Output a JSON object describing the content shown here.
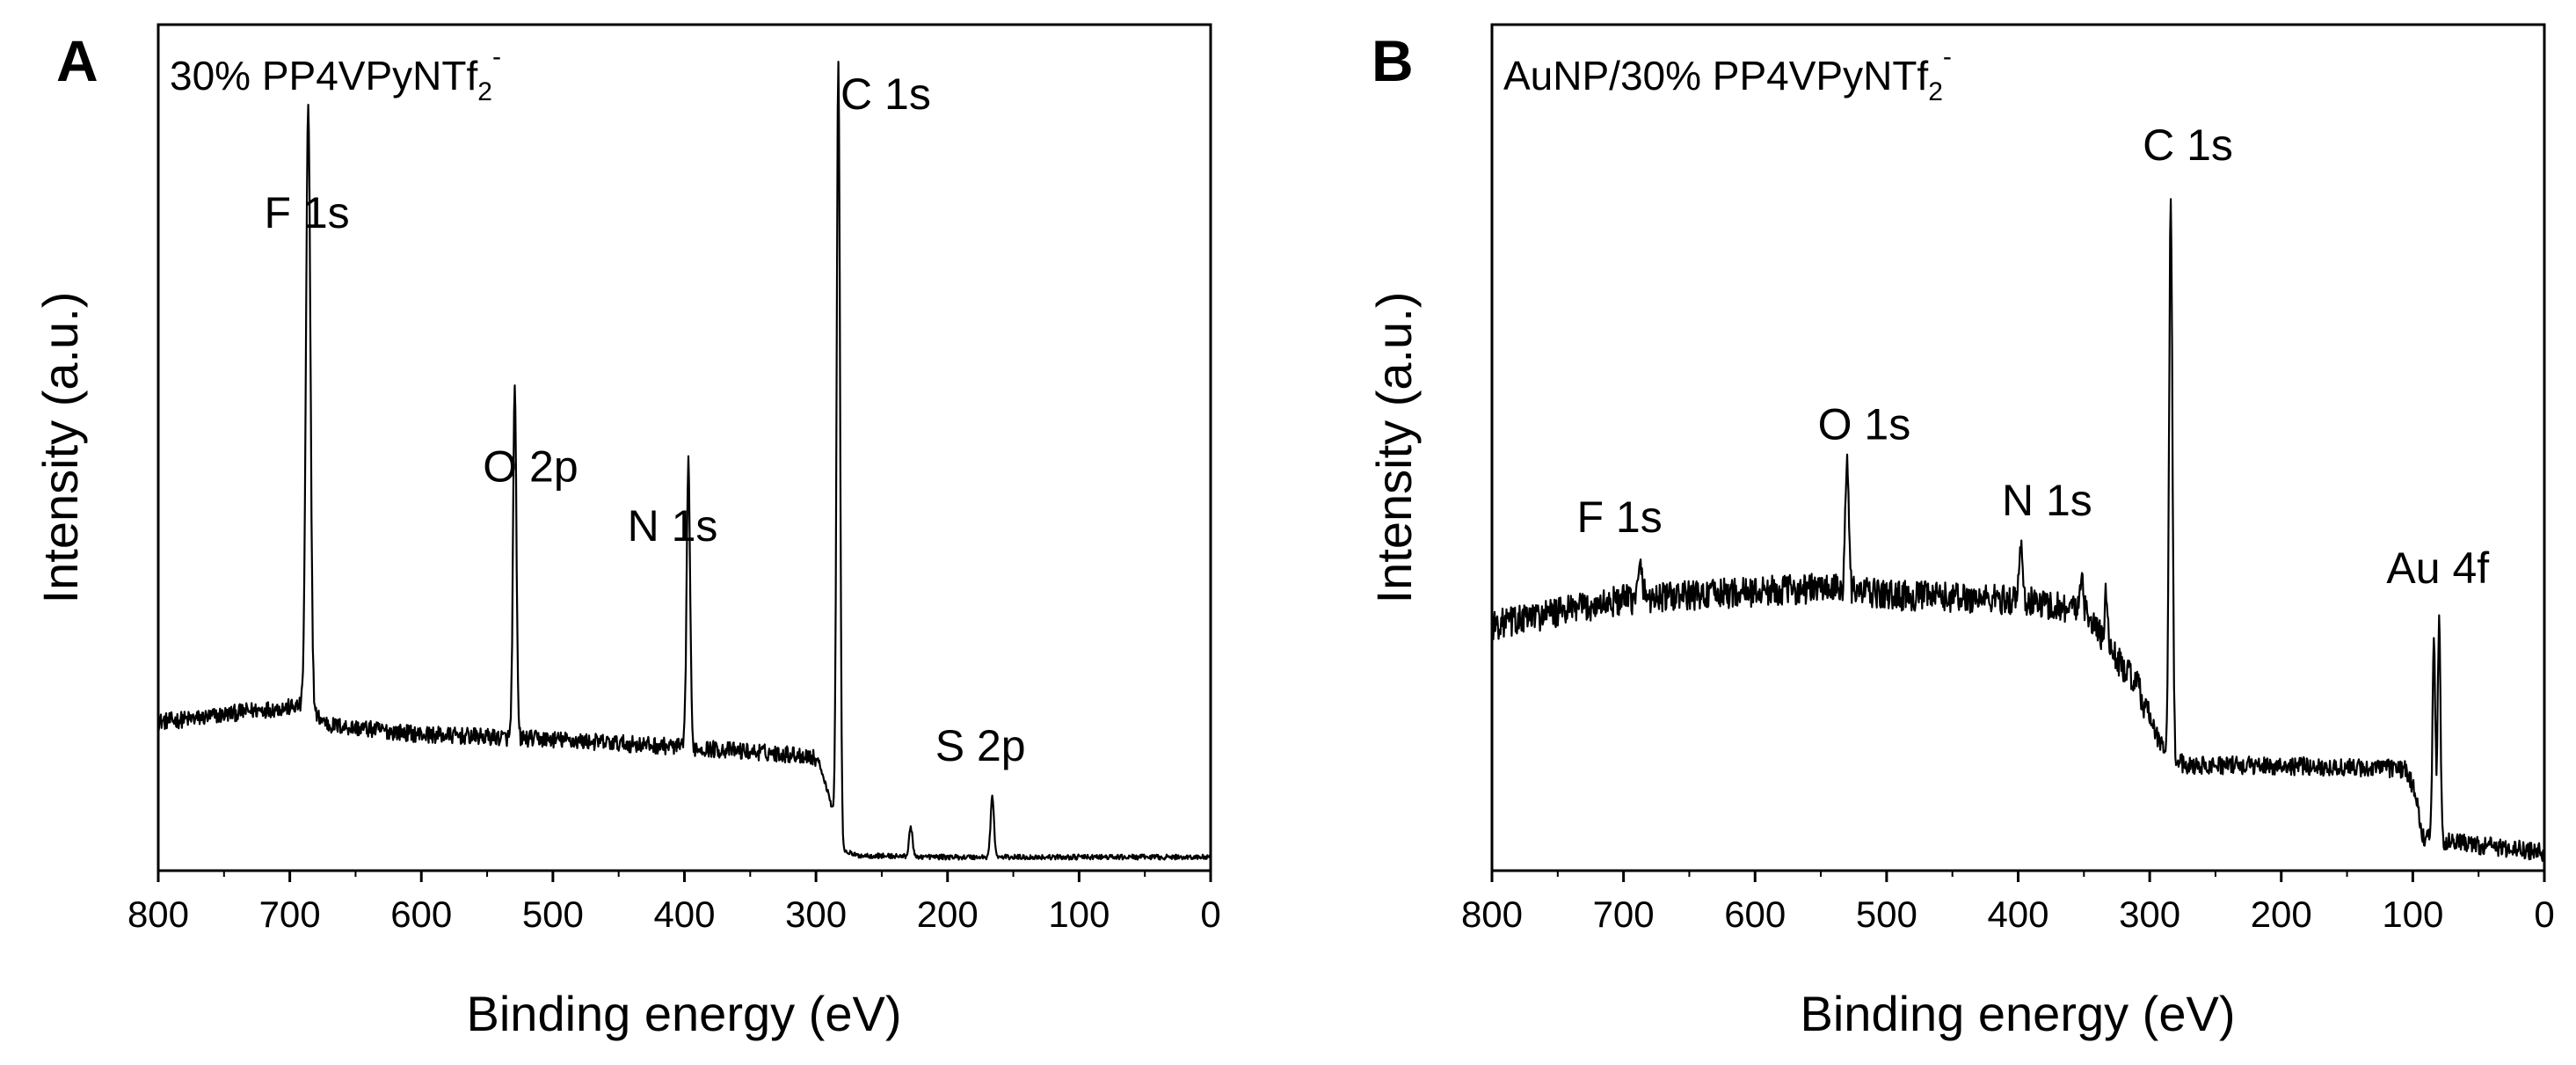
{
  "chart_data": [
    {
      "panel": "A",
      "type": "line",
      "title": "30% PP4VPyNTf2-",
      "title_parts": {
        "main": "30% PP4VPyNTf",
        "sub": "2",
        "sup": "-"
      },
      "xlabel": "Binding energy (eV)",
      "ylabel": "Intensity (a.u.)",
      "xlim": [
        800,
        0
      ],
      "ylim": [
        0,
        100
      ],
      "x_ticks": [
        800,
        700,
        600,
        500,
        400,
        300,
        200,
        100,
        0
      ],
      "y_ticks_labeled": false,
      "baseline": [
        [
          800,
          17.6
        ],
        [
          770,
          18.0
        ],
        [
          730,
          18.9
        ],
        [
          700,
          19.3
        ],
        [
          690,
          19.5
        ],
        [
          670,
          17.2
        ],
        [
          600,
          16.1
        ],
        [
          500,
          15.5
        ],
        [
          400,
          14.6
        ],
        [
          305,
          13.6
        ],
        [
          298,
          13.0
        ],
        [
          290,
          8.8
        ],
        [
          280,
          2.5
        ],
        [
          270,
          1.8
        ],
        [
          200,
          1.6
        ],
        [
          100,
          1.6
        ],
        [
          0,
          1.6
        ]
      ],
      "peaks": [
        {
          "label": "F 1s",
          "x": 686,
          "height": 71.0,
          "width": 4
        },
        {
          "label": "O 2p",
          "x": 529,
          "height": 41.0,
          "width": 3
        },
        {
          "label": "N 1s",
          "x": 397,
          "height": 34.0,
          "width": 3
        },
        {
          "label": "C 1s",
          "x": 283,
          "height": 91.5,
          "width": 3
        },
        {
          "label": "",
          "x": 228,
          "height": 3.5,
          "width": 3
        },
        {
          "label": "S 2p",
          "x": 166,
          "height": 7.2,
          "width": 3
        }
      ],
      "noise_amplitude": 1.0,
      "annotations": [
        {
          "text": "F 1s",
          "x": 687,
          "y": 76
        },
        {
          "text": "O 2p",
          "x": 517,
          "y": 46
        },
        {
          "text": "N 1s",
          "x": 409,
          "y": 39
        },
        {
          "text": "C 1s",
          "x": 247,
          "y": 90
        },
        {
          "text": "S 2p",
          "x": 175,
          "y": 13
        }
      ]
    },
    {
      "panel": "B",
      "type": "line",
      "title": "AuNP/30% PP4VPyNTf2-",
      "title_parts": {
        "main": "AuNP/30% PP4VPyNTf",
        "sub": "2",
        "sup": "-"
      },
      "xlabel": "Binding energy (eV)",
      "ylabel": "Intensity (a.u.)",
      "xlim": [
        800,
        0
      ],
      "ylim": [
        0,
        100
      ],
      "x_ticks": [
        800,
        700,
        600,
        500,
        400,
        300,
        200,
        100,
        0
      ],
      "y_ticks_labeled": false,
      "baseline": [
        [
          800,
          29.0
        ],
        [
          700,
          32.0
        ],
        [
          600,
          33.0
        ],
        [
          550,
          33.4
        ],
        [
          500,
          32.6
        ],
        [
          400,
          32.0
        ],
        [
          350,
          30.8
        ],
        [
          330,
          26.0
        ],
        [
          310,
          22.0
        ],
        [
          295,
          16.0
        ],
        [
          285,
          13.0
        ],
        [
          270,
          12.5
        ],
        [
          200,
          12.4
        ],
        [
          105,
          12.0
        ],
        [
          98,
          9.0
        ],
        [
          92,
          4.0
        ],
        [
          80,
          3.6
        ],
        [
          50,
          3.0
        ],
        [
          0,
          2.2
        ]
      ],
      "peaks": [
        {
          "label": "F 1s",
          "x": 687,
          "height": 3.5,
          "width": 4
        },
        {
          "label": "O 1s",
          "x": 530,
          "height": 16.5,
          "width": 3
        },
        {
          "label": "N 1s",
          "x": 398,
          "height": 6.5,
          "width": 3
        },
        {
          "label": "",
          "x": 352,
          "height": 4.5,
          "width": 3
        },
        {
          "label": "",
          "x": 333,
          "height": 6.0,
          "width": 3
        },
        {
          "label": "C 1s",
          "x": 284,
          "height": 66.0,
          "width": 3
        },
        {
          "label": "Au 4f",
          "x": 84,
          "height": 24.0,
          "width": 2.5
        },
        {
          "label": "",
          "x": 80,
          "height": 26.0,
          "width": 2.5
        }
      ],
      "noise_amplitude": 1.8,
      "annotations": [
        {
          "text": "F 1s",
          "x": 703,
          "y": 40
        },
        {
          "text": "O 1s",
          "x": 517,
          "y": 51
        },
        {
          "text": "N 1s",
          "x": 378,
          "y": 42
        },
        {
          "text": "C 1s",
          "x": 271,
          "y": 84
        },
        {
          "text": "Au 4f",
          "x": 81,
          "y": 34
        }
      ]
    }
  ]
}
